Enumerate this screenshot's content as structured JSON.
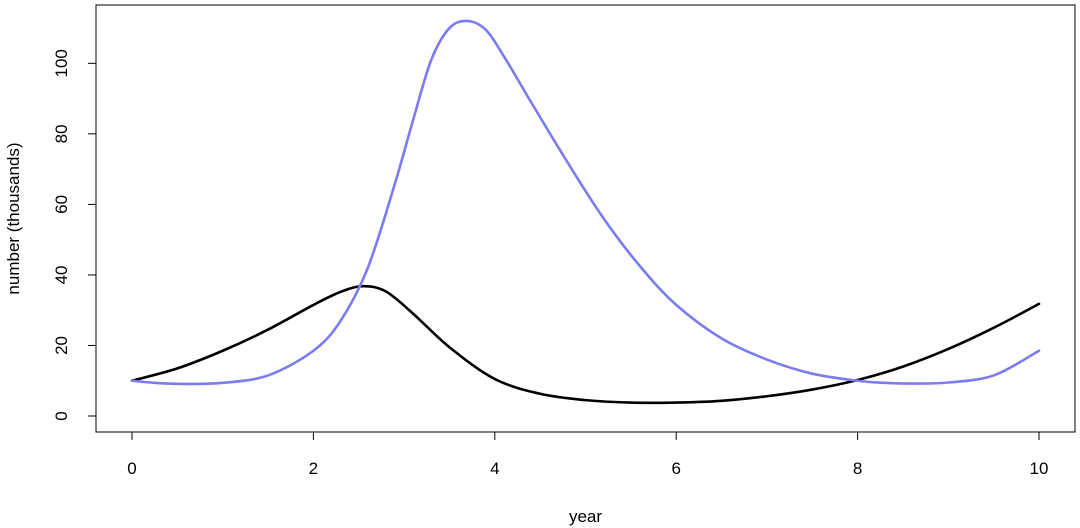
{
  "chart_data": {
    "type": "line",
    "title": "",
    "xlabel": "year",
    "ylabel": "number (thousands)",
    "xlim": [
      0,
      10
    ],
    "ylim": [
      0,
      112
    ],
    "x_ticks": [
      0,
      2,
      4,
      6,
      8,
      10
    ],
    "x_tick_labels": [
      "0",
      "2",
      "4",
      "6",
      "8",
      "10"
    ],
    "y_ticks": [
      0,
      20,
      40,
      60,
      80,
      100
    ],
    "y_tick_labels": [
      "0",
      "20",
      "40",
      "60",
      "80",
      "100"
    ],
    "grid": false,
    "legend": "none",
    "series": [
      {
        "color": "#000000",
        "x": [
          0,
          0.5,
          1,
          1.5,
          2,
          2.3,
          2.55,
          2.8,
          3.1,
          3.5,
          4,
          4.5,
          5,
          5.5,
          6,
          6.5,
          7,
          7.5,
          8,
          8.5,
          9,
          9.5,
          10
        ],
        "y": [
          10,
          13.5,
          18.5,
          24.5,
          31.5,
          35.2,
          36.8,
          35.3,
          29,
          19.5,
          10.5,
          6.3,
          4.5,
          3.8,
          3.8,
          4.3,
          5.6,
          7.5,
          10.2,
          14,
          19,
          25,
          31.8
        ]
      },
      {
        "color": "#7b7bf2",
        "x": [
          0,
          0.3,
          0.6,
          1,
          1.5,
          2,
          2.3,
          2.6,
          2.9,
          3.1,
          3.3,
          3.5,
          3.7,
          3.9,
          4.1,
          4.4,
          4.8,
          5.2,
          5.6,
          6,
          6.5,
          7,
          7.5,
          8,
          8.3,
          8.6,
          9,
          9.5,
          10
        ],
        "y": [
          10,
          9.3,
          9.1,
          9.4,
          11.5,
          18.5,
          27,
          42,
          66,
          84,
          101,
          110,
          112,
          109.5,
          102,
          89,
          72,
          56,
          42.5,
          31.5,
          22,
          16,
          12,
          10,
          9.4,
          9.2,
          9.5,
          11.5,
          18.5
        ]
      }
    ]
  }
}
